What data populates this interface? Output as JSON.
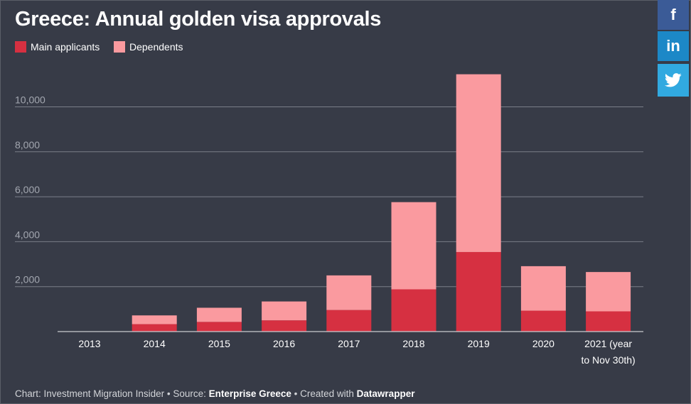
{
  "share_buttons": [
    {
      "label": "f",
      "icon": "facebook-icon"
    },
    {
      "label": "in",
      "icon": "linkedin-icon"
    },
    {
      "label": "",
      "icon": "twitter-icon"
    }
  ],
  "colors": {
    "background": "#373b47",
    "main": "#d63041",
    "dependents": "#fa9a9f",
    "grid": "#7a7e88",
    "text": "#ffffff",
    "muted": "#a3a7b0"
  },
  "footer": {
    "prefix": "Chart: Investment Migration Insider • Source: ",
    "source": "Enterprise Greece",
    "middle": " • Created with ",
    "tool": "Datawrapper"
  },
  "chart_data": {
    "type": "bar",
    "stacked": true,
    "title": "Greece: Annual golden visa approvals",
    "categories": [
      "2013",
      "2014",
      "2015",
      "2016",
      "2017",
      "2018",
      "2019",
      "2020",
      "2021 (year to Nov 30th)"
    ],
    "category_lines": [
      [
        "2013"
      ],
      [
        "2014"
      ],
      [
        "2015"
      ],
      [
        "2016"
      ],
      [
        "2017"
      ],
      [
        "2018"
      ],
      [
        "2019"
      ],
      [
        "2020"
      ],
      [
        "2021 (year",
        "to Nov 30th)"
      ]
    ],
    "series": [
      {
        "name": "Main applicants",
        "color": "#d63041",
        "values": [
          0,
          330,
          430,
          500,
          960,
          1880,
          3540,
          930,
          900
        ]
      },
      {
        "name": "Dependents",
        "color": "#fa9a9f",
        "values": [
          0,
          390,
          630,
          840,
          1540,
          3880,
          7910,
          1980,
          1750
        ]
      }
    ],
    "yticks": [
      2000,
      4000,
      6000,
      8000,
      10000
    ],
    "ytick_labels": [
      "2,000",
      "4,000",
      "6,000",
      "8,000",
      "10,000"
    ],
    "ylim": [
      0,
      11500
    ],
    "legend": "top-left",
    "grid": true
  }
}
